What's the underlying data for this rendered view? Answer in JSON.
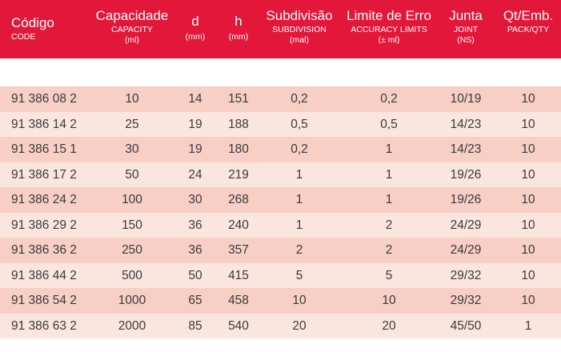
{
  "header": {
    "code": {
      "main": "Código",
      "sub": "CODE"
    },
    "capacity": {
      "main": "Capacidade",
      "sub": "CAPACITY",
      "unit": "(ml)"
    },
    "d": {
      "main": "d",
      "unit": "(mm)"
    },
    "h": {
      "main": "h",
      "unit": "(mm)"
    },
    "subdivision": {
      "main": "Subdivisão",
      "sub": "SUBDIVISION",
      "unit": "(mal)"
    },
    "accuracy": {
      "main": "Limite de Erro",
      "sub": "ACCURACY LIMITS",
      "unit": "(± ml)"
    },
    "joint": {
      "main": "Junta",
      "sub": "JOINT",
      "unit": "(NS)"
    },
    "pack": {
      "main": "Qt/Emb.",
      "sub": "PACK/QTY"
    }
  },
  "rows": [
    {
      "code": "91 386 08 2",
      "capacity": "10",
      "d": "14",
      "h": "151",
      "subdivision": "0,2",
      "accuracy": "0,2",
      "joint": "10/19",
      "pack": "10"
    },
    {
      "code": "91 386 14 2",
      "capacity": "25",
      "d": "19",
      "h": "188",
      "subdivision": "0,5",
      "accuracy": "0,5",
      "joint": "14/23",
      "pack": "10"
    },
    {
      "code": "91 386 15 1",
      "capacity": "30",
      "d": "19",
      "h": "180",
      "subdivision": "0,2",
      "accuracy": "1",
      "joint": "14/23",
      "pack": "10"
    },
    {
      "code": "91 386 17 2",
      "capacity": "50",
      "d": "24",
      "h": "219",
      "subdivision": "1",
      "accuracy": "1",
      "joint": "19/26",
      "pack": "10"
    },
    {
      "code": "91 386 24 2",
      "capacity": "100",
      "d": "30",
      "h": "268",
      "subdivision": "1",
      "accuracy": "1",
      "joint": "19/26",
      "pack": "10"
    },
    {
      "code": "91 386 29 2",
      "capacity": "150",
      "d": "36",
      "h": "240",
      "subdivision": "1",
      "accuracy": "2",
      "joint": "24/29",
      "pack": "10"
    },
    {
      "code": "91 386 36 2",
      "capacity": "250",
      "d": "36",
      "h": "357",
      "subdivision": "2",
      "accuracy": "2",
      "joint": "24/29",
      "pack": "10"
    },
    {
      "code": "91 386 44 2",
      "capacity": "500",
      "d": "50",
      "h": "415",
      "subdivision": "5",
      "accuracy": "5",
      "joint": "29/32",
      "pack": "10"
    },
    {
      "code": "91 386 54 2",
      "capacity": "1000",
      "d": "65",
      "h": "458",
      "subdivision": "10",
      "accuracy": "10",
      "joint": "29/32",
      "pack": "10"
    },
    {
      "code": "91 386 63 2",
      "capacity": "2000",
      "d": "85",
      "h": "540",
      "subdivision": "20",
      "accuracy": "20",
      "joint": "45/50",
      "pack": "1"
    }
  ],
  "colors": {
    "header_bg": "#e2173a",
    "header_text": "#ffffff",
    "row_dark": "#f7cfc5",
    "row_light": "#fbe6df",
    "text": "#3a3a3a"
  }
}
